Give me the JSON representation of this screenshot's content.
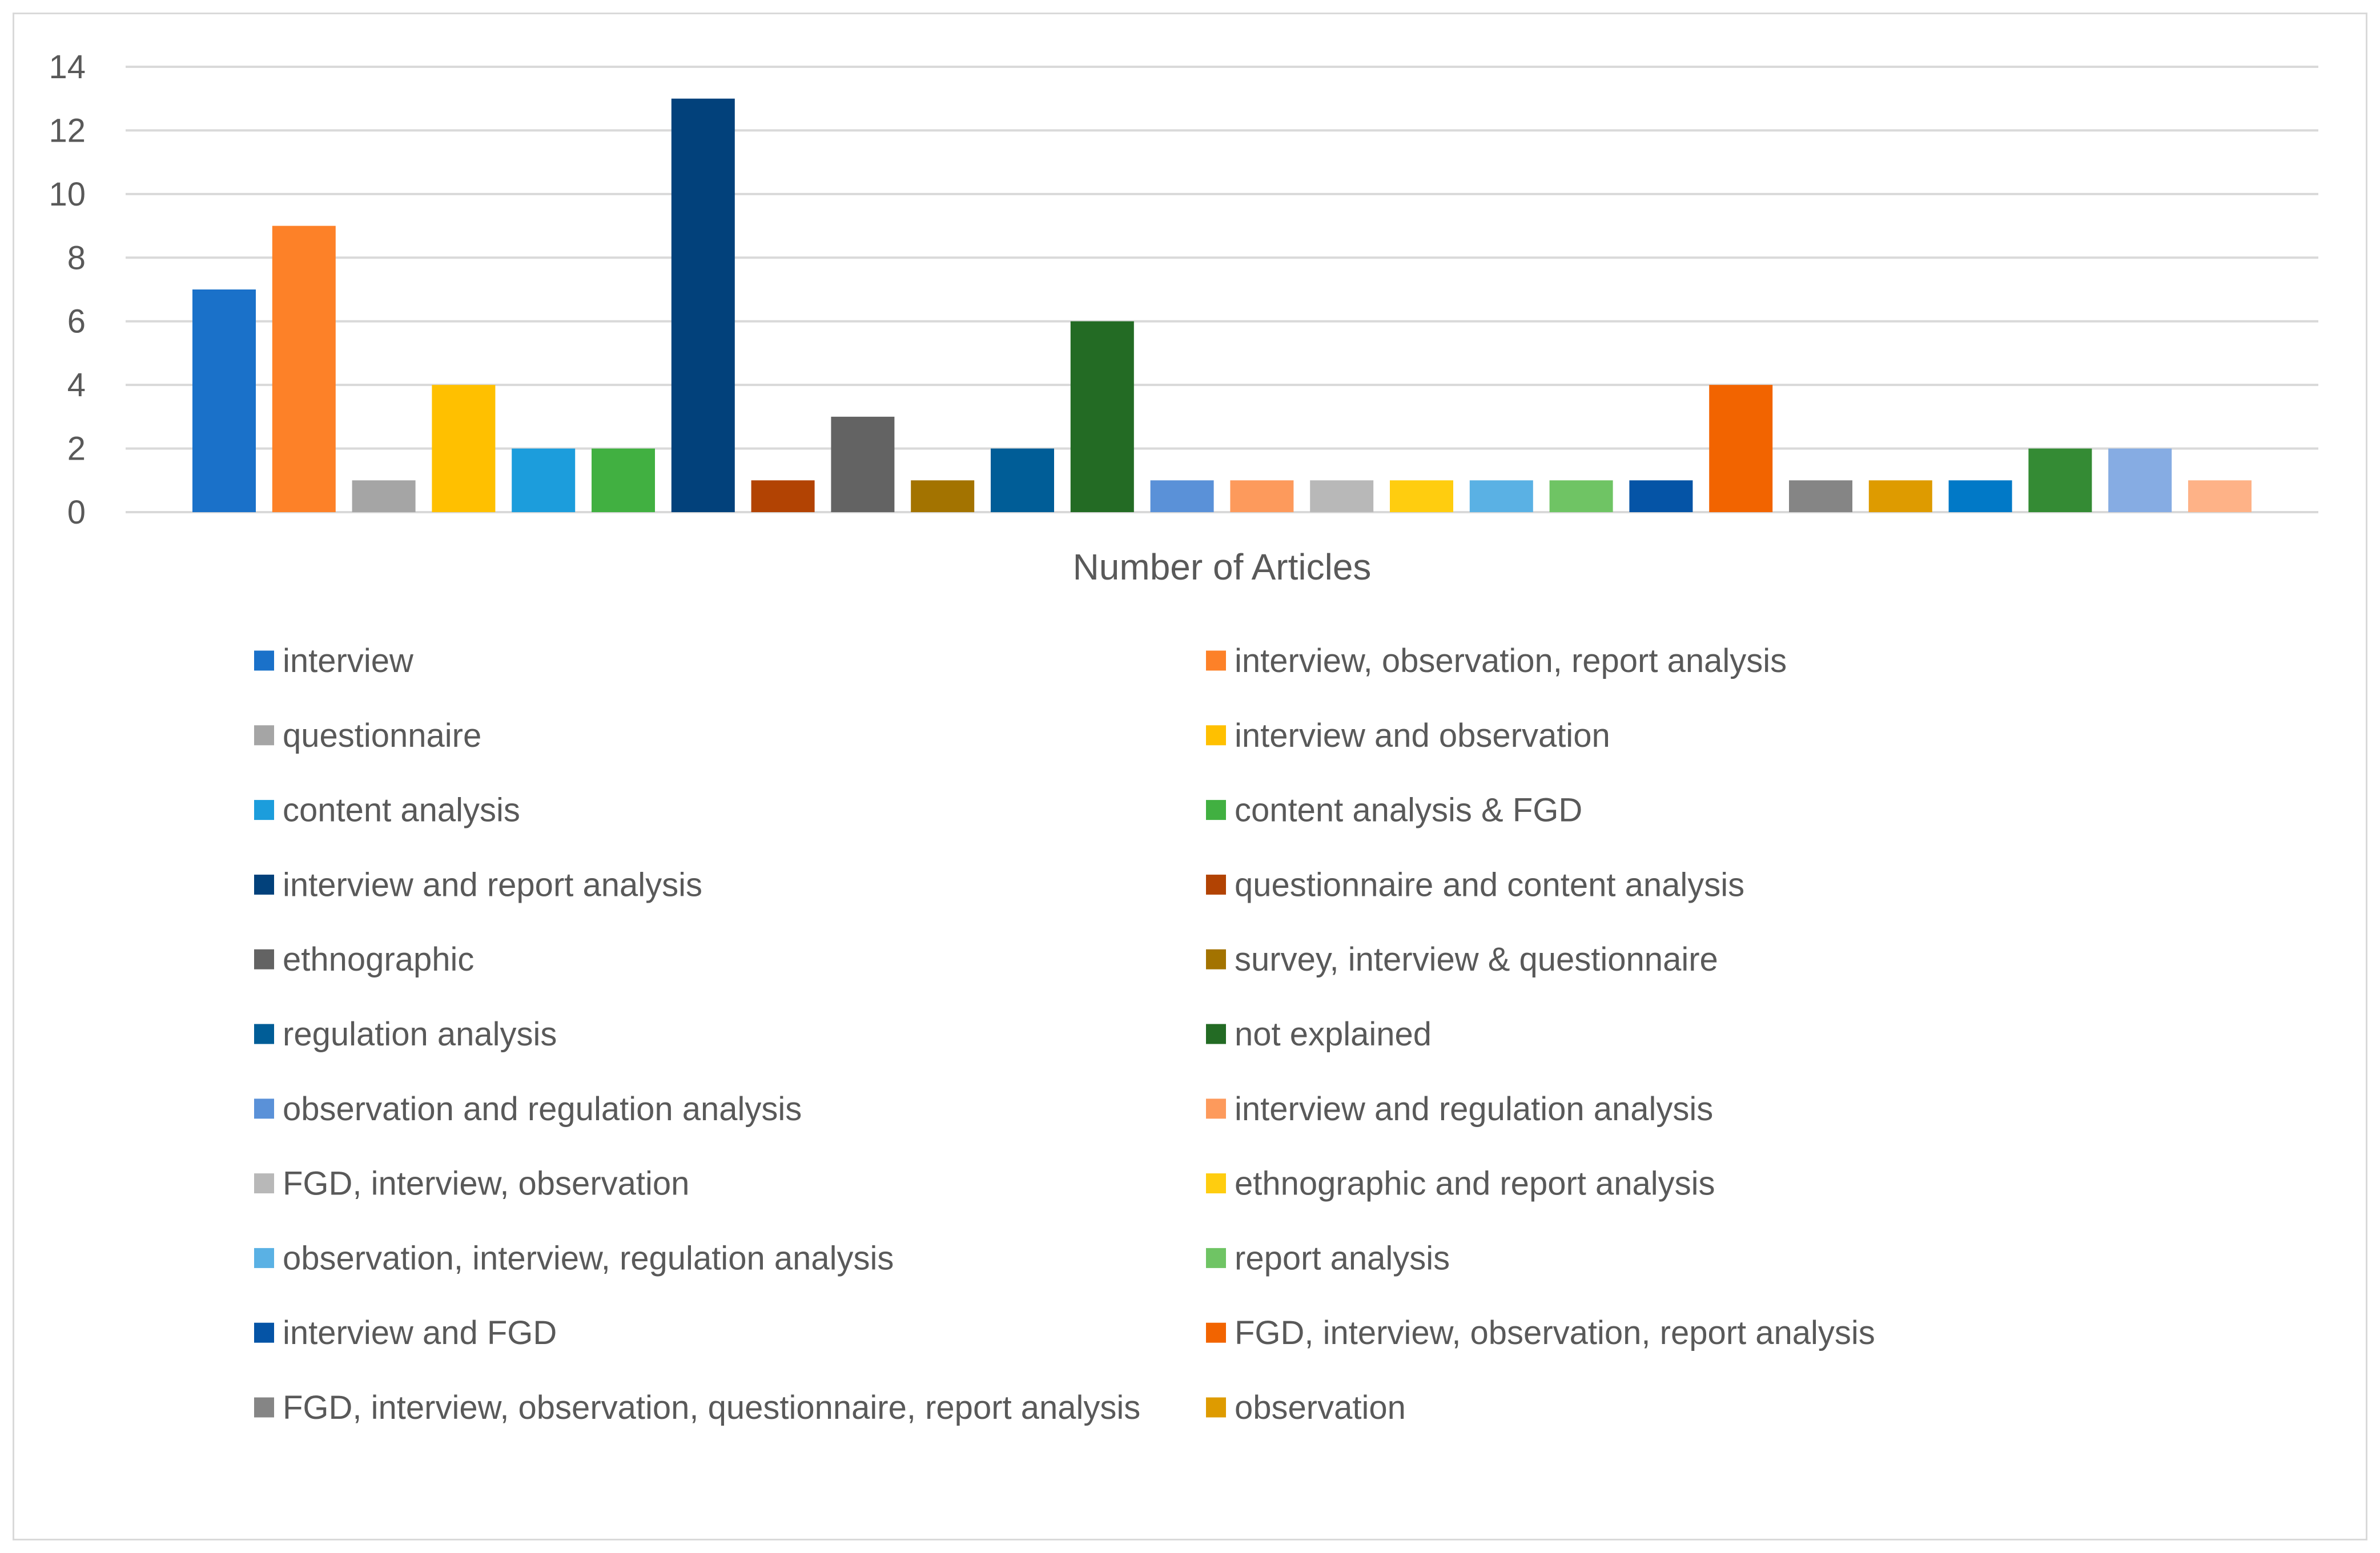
{
  "chart_data": {
    "type": "bar",
    "title": "",
    "xlabel": "Number of Articles",
    "ylabel": "",
    "ylim": [
      0,
      14
    ],
    "yticks": [
      0,
      2,
      4,
      6,
      8,
      10,
      12,
      14
    ],
    "grid": true,
    "legend_position": "bottom",
    "series": [
      {
        "name": "interview",
        "value": 7,
        "color": "#1a71c9"
      },
      {
        "name": "interview, observation, report analysis",
        "value": 9,
        "color": "#fd8128"
      },
      {
        "name": "questionnaire",
        "value": 1,
        "color": "#a5a5a5"
      },
      {
        "name": "interview and observation",
        "value": 4,
        "color": "#ffc000"
      },
      {
        "name": "content analysis",
        "value": 2,
        "color": "#1c9ddc"
      },
      {
        "name": "content analysis & FGD",
        "value": 2,
        "color": "#41b041"
      },
      {
        "name": "interview and report analysis",
        "value": 13,
        "color": "#02417b"
      },
      {
        "name": "questionnaire and content analysis",
        "value": 1,
        "color": "#b24303"
      },
      {
        "name": "ethnographic",
        "value": 3,
        "color": "#636363"
      },
      {
        "name": "survey, interview & questionnaire",
        "value": 1,
        "color": "#a37300"
      },
      {
        "name": "regulation analysis",
        "value": 2,
        "color": "#005d97"
      },
      {
        "name": "not explained",
        "value": 6,
        "color": "#236b24"
      },
      {
        "name": "observation and regulation analysis",
        "value": 1,
        "color": "#5a91d8"
      },
      {
        "name": "interview and regulation analysis",
        "value": 1,
        "color": "#fd9a5c"
      },
      {
        "name": "FGD, interview, observation",
        "value": 1,
        "color": "#b8b8b8"
      },
      {
        "name": "ethnographic and report analysis",
        "value": 1,
        "color": "#ffcd0f"
      },
      {
        "name": "observation, interview, regulation analysis",
        "value": 1,
        "color": "#5ab1e4"
      },
      {
        "name": "report analysis",
        "value": 1,
        "color": "#6fc464"
      },
      {
        "name": "interview and FGD",
        "value": 1,
        "color": "#0554a6"
      },
      {
        "name": "FGD, interview, observation, report analysis",
        "value": 4,
        "color": "#f26400"
      },
      {
        "name": "FGD, interview, observation, questionnaire, report analysis",
        "value": 1,
        "color": "#858585"
      },
      {
        "name": "observation",
        "value": 1,
        "color": "#de9b00"
      },
      {
        "name": "",
        "value": 1,
        "color": "#0179c7"
      },
      {
        "name": "",
        "value": 2,
        "color": "#348b34"
      },
      {
        "name": "",
        "value": 2,
        "color": "#86ace3"
      },
      {
        "name": "",
        "value": 1,
        "color": "#feb287"
      }
    ],
    "legend_entries": [
      "interview",
      "interview, observation, report analysis",
      "questionnaire",
      "interview and observation",
      "content analysis",
      "content analysis & FGD",
      "interview and report analysis",
      "questionnaire and content analysis",
      "ethnographic",
      "survey, interview & questionnaire",
      "regulation analysis",
      "not explained",
      "observation and regulation analysis",
      "interview and regulation analysis",
      "FGD, interview, observation",
      "ethnographic and report analysis",
      "observation, interview, regulation analysis",
      "report analysis",
      "interview and FGD",
      "FGD, interview, observation, report analysis",
      "FGD, interview, observation, questionnaire, report analysis",
      "observation"
    ],
    "colors": {
      "grid": "#d9d9d9",
      "text": "#595959",
      "frame": "#d9d9d9"
    }
  }
}
